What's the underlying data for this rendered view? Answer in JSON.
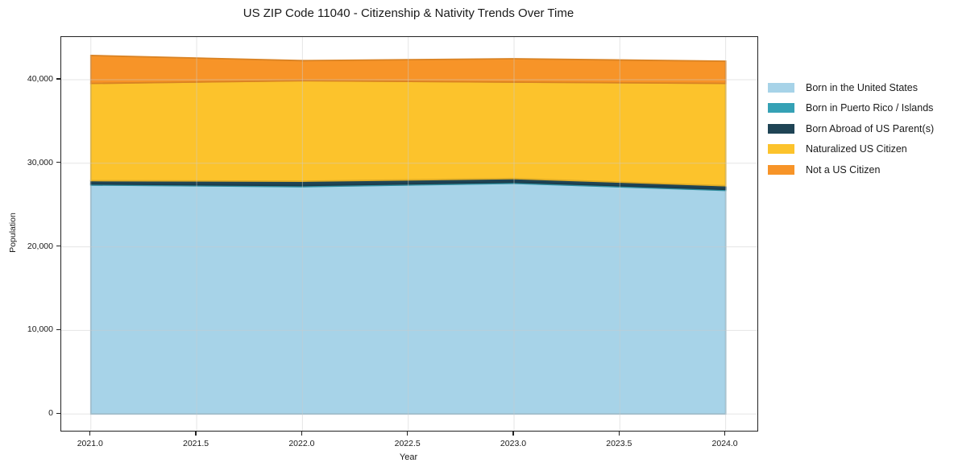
{
  "chart_data": {
    "type": "area",
    "stacked": true,
    "title": "US ZIP Code 11040 - Citizenship & Nativity Trends Over Time",
    "xlabel": "Year",
    "ylabel": "Population",
    "x": [
      2021,
      2022,
      2023,
      2024
    ],
    "series": [
      {
        "name": "Born in the United States",
        "color": "#a7d3e8",
        "values": [
          27400,
          27200,
          27600,
          26750
        ]
      },
      {
        "name": "Born in Puerto Rico / Islands",
        "color": "#35a1b5",
        "values": [
          120,
          130,
          130,
          130
        ]
      },
      {
        "name": "Born Abroad of US Parent(s)",
        "color": "#1f4455",
        "values": [
          400,
          520,
          440,
          430
        ]
      },
      {
        "name": "Naturalized US Citizen",
        "color": "#fcc32c",
        "values": [
          11630,
          12030,
          11540,
          12240
        ]
      },
      {
        "name": "Not a US Citizen",
        "color": "#f79428",
        "values": [
          3340,
          2400,
          2790,
          2660
        ]
      }
    ],
    "xticks": [
      {
        "v": 2021.0,
        "label": "2021.0"
      },
      {
        "v": 2021.5,
        "label": "2021.5"
      },
      {
        "v": 2022.0,
        "label": "2022.0"
      },
      {
        "v": 2022.5,
        "label": "2022.5"
      },
      {
        "v": 2023.0,
        "label": "2023.0"
      },
      {
        "v": 2023.5,
        "label": "2023.5"
      },
      {
        "v": 2024.0,
        "label": "2024.0"
      }
    ],
    "yticks": [
      {
        "v": 0,
        "label": "0"
      },
      {
        "v": 10000,
        "label": "10,000"
      },
      {
        "v": 20000,
        "label": "20,000"
      },
      {
        "v": 30000,
        "label": "30,000"
      },
      {
        "v": 40000,
        "label": "40,000"
      }
    ],
    "xlim": [
      2020.86,
      2024.15
    ],
    "ylim": [
      -2000,
      45100
    ],
    "grid": true,
    "legend_position": "right-outside"
  },
  "colors": {
    "spine": "#222222",
    "grid": "#cccccc",
    "text": "#1a1a1a",
    "background": "#ffffff"
  }
}
